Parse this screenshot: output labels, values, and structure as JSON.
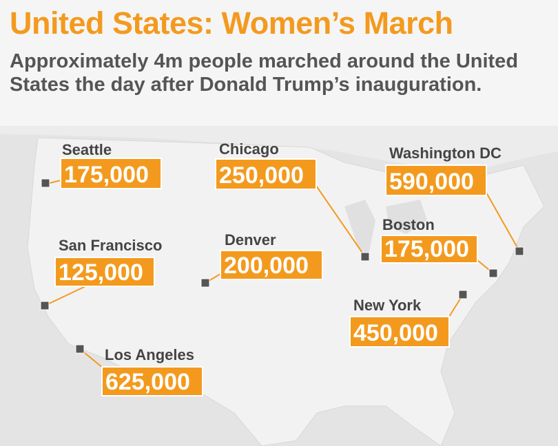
{
  "header": {
    "title": "United States: Women’s March",
    "subtitle": "Approximately 4m people marched around the United States the day after Donald Trump’s inauguration."
  },
  "cities": [
    {
      "name": "Seattle",
      "count": "175,000"
    },
    {
      "name": "Chicago",
      "count": "250,000"
    },
    {
      "name": "Washington DC",
      "count": "590,000"
    },
    {
      "name": "Boston",
      "count": "175,000"
    },
    {
      "name": "San Francisco",
      "count": "125,000"
    },
    {
      "name": "Denver",
      "count": "200,000"
    },
    {
      "name": "New York",
      "count": "450,000"
    },
    {
      "name": "Los Angeles",
      "count": "625,000"
    }
  ]
}
